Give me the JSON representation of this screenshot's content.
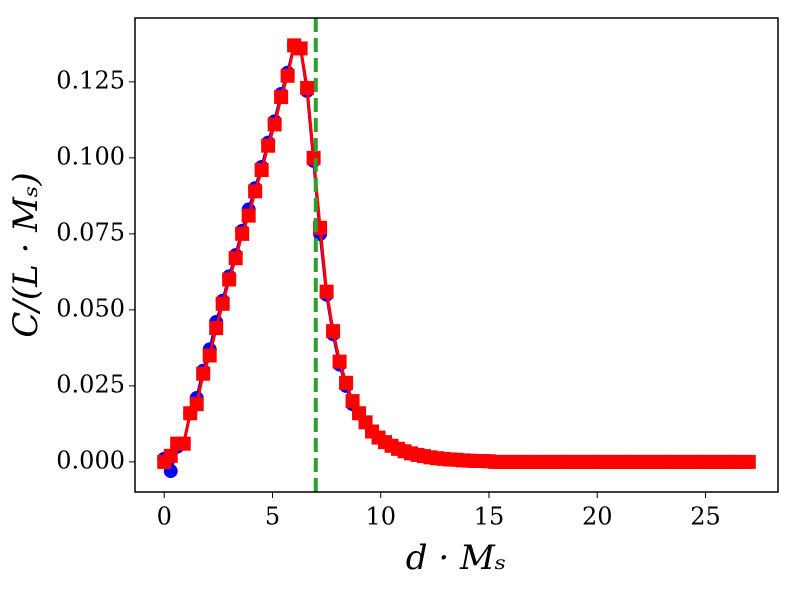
{
  "chart_data": {
    "type": "line",
    "x_label": "d · Mₛ",
    "y_label": "C/(L · Mₛ)",
    "xlim": [
      -1.35,
      28.35
    ],
    "ylim": [
      -0.0099,
      0.146
    ],
    "xticks": [
      0,
      5,
      10,
      15,
      20,
      25
    ],
    "yticks": [
      {
        "value": 0,
        "label": "0.000"
      },
      0.025,
      {
        "value": 0.05,
        "label": "0.050"
      },
      0.075,
      {
        "value": 0.1,
        "label": "0.100"
      },
      0.125
    ],
    "x": [
      0,
      0.3,
      0.6,
      0.9,
      1.2,
      1.5,
      1.8,
      2.1,
      2.4,
      2.7,
      3,
      3.3,
      3.6,
      3.9,
      4.2,
      4.5,
      4.8,
      5.1,
      5.4,
      5.7,
      6,
      6.3,
      6.6,
      6.9,
      7.2,
      7.5,
      7.8,
      8.1,
      8.4,
      8.7,
      9,
      9.3,
      9.6,
      9.9,
      10.2,
      10.5,
      10.8,
      11.1,
      11.4,
      11.7,
      12,
      12.3,
      12.6,
      12.9,
      13.2,
      13.5,
      13.8,
      14.1,
      14.4,
      14.7,
      15,
      15.3,
      15.6,
      15.9,
      16.2,
      16.5,
      16.8,
      17.1,
      17.4,
      17.7,
      18,
      18.3,
      18.6,
      18.9,
      19.2,
      19.5,
      19.8,
      20.1,
      20.4,
      20.7,
      21,
      21.3,
      21.6,
      21.9,
      22.2,
      22.5,
      22.8,
      23.1,
      23.4,
      23.7,
      24,
      24.3,
      24.6,
      24.9,
      25.2,
      25.5,
      25.8,
      26.1,
      26.4,
      26.7,
      27
    ],
    "series": [
      {
        "color": "#0000ff",
        "marker": "circle",
        "values": [
          0.001,
          -0.003,
          0.005,
          0.006,
          0.016,
          0.021,
          0.03,
          0.037,
          0.046,
          0.053,
          0.061,
          0.068,
          0.076,
          0.083,
          0.09,
          0.097,
          0.105,
          0.112,
          0.121,
          0.128,
          0.137,
          0.136,
          0.122,
          0.099,
          0.075,
          0.055,
          0.042,
          0.032,
          0.025,
          0.019,
          0.016,
          0.013,
          0.01,
          0.008,
          0.0065,
          0.0053,
          0.0043,
          0.0035,
          0.0028,
          0.0023,
          0.0019,
          0.0015,
          0.0012,
          0.001,
          0.0008,
          0.0007,
          0.0005,
          0.0004,
          0.0003,
          0.0003,
          0.0002,
          0,
          0,
          0,
          0,
          0,
          0,
          0,
          0,
          0,
          0,
          0,
          0,
          0,
          0,
          0,
          0,
          0,
          0,
          0,
          0,
          0,
          0,
          0,
          0,
          0,
          0,
          0,
          0,
          0,
          0,
          0,
          0,
          0,
          0,
          0,
          0,
          0,
          0,
          0,
          0
        ]
      },
      {
        "color": "#ff0000",
        "marker": "square",
        "values": [
          0,
          0.002,
          0.006,
          0.006,
          0.016,
          0.019,
          0.029,
          0.035,
          0.044,
          0.052,
          0.06,
          0.067,
          0.075,
          0.081,
          0.089,
          0.096,
          0.104,
          0.111,
          0.12,
          0.127,
          0.137,
          0.136,
          0.123,
          0.1,
          0.077,
          0.056,
          0.043,
          0.033,
          0.026,
          0.02,
          0.016,
          0.013,
          0.01,
          0.008,
          0.0065,
          0.0053,
          0.0043,
          0.0035,
          0.0028,
          0.0023,
          0.0019,
          0.0015,
          0.0012,
          0.001,
          0.0008,
          0.0007,
          0.0005,
          0.0004,
          0.0003,
          0.0003,
          0.0002,
          0,
          0,
          0,
          0,
          0,
          0,
          0,
          0,
          0,
          0,
          0,
          0,
          0,
          0,
          0,
          0,
          0,
          0,
          0,
          0,
          0,
          0,
          0,
          0,
          0,
          0,
          0,
          0,
          0,
          0,
          0,
          0,
          0,
          0,
          0,
          0,
          0,
          0,
          0,
          0
        ]
      }
    ],
    "vlines": [
      {
        "x": 7,
        "color": "#2ca02c",
        "dashed": true
      }
    ]
  }
}
